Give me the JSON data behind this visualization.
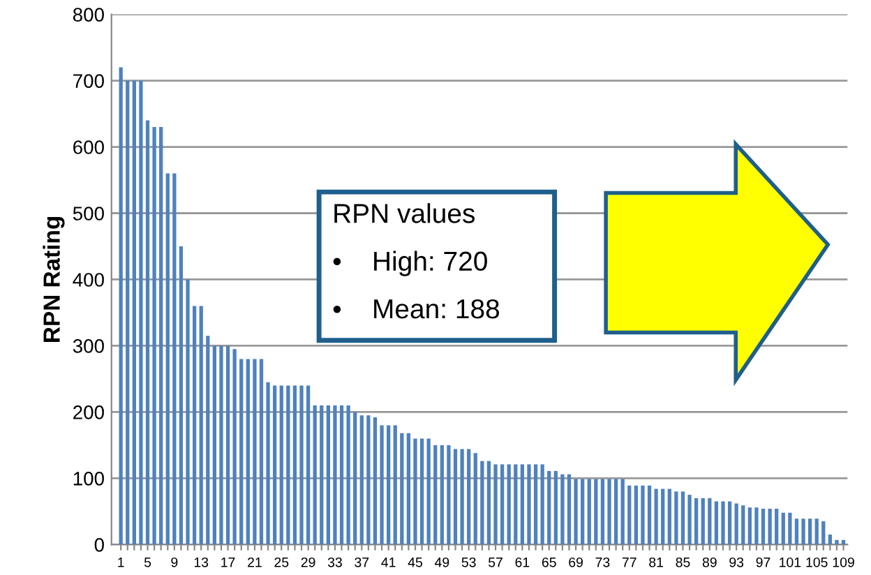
{
  "chart_data": {
    "type": "bar",
    "ylabel": "RPN Rating",
    "categories": [
      "1",
      null,
      null,
      null,
      "5",
      null,
      null,
      null,
      "9",
      null,
      null,
      null,
      "13",
      null,
      null,
      null,
      "17",
      null,
      null,
      null,
      "21",
      null,
      null,
      null,
      "25",
      null,
      null,
      null,
      "29",
      null,
      null,
      null,
      "33",
      null,
      null,
      null,
      "37",
      null,
      null,
      null,
      "41",
      null,
      null,
      null,
      "45",
      null,
      null,
      null,
      "49",
      null,
      null,
      null,
      "53",
      null,
      null,
      null,
      "57",
      null,
      null,
      null,
      "61",
      null,
      null,
      null,
      "65",
      null,
      null,
      null,
      "69",
      null,
      null,
      null,
      "73",
      null,
      null,
      null,
      "77",
      null,
      null,
      null,
      "81",
      null,
      null,
      null,
      "85",
      null,
      null,
      null,
      "89",
      null,
      null,
      null,
      "93",
      null,
      null,
      null,
      "97",
      null,
      null,
      null,
      "101",
      null,
      null,
      null,
      "105",
      null,
      null,
      null,
      "109"
    ],
    "values": [
      720,
      700,
      700,
      700,
      640,
      630,
      630,
      560,
      560,
      450,
      400,
      360,
      360,
      315,
      300,
      300,
      300,
      295,
      280,
      280,
      280,
      280,
      245,
      240,
      240,
      240,
      240,
      240,
      240,
      210,
      210,
      210,
      210,
      210,
      210,
      200,
      195,
      195,
      192,
      180,
      180,
      180,
      168,
      168,
      160,
      160,
      160,
      150,
      150,
      150,
      144,
      144,
      144,
      138,
      126,
      126,
      121,
      121,
      121,
      121,
      121,
      121,
      121,
      121,
      111,
      111,
      106,
      106,
      99,
      99,
      99,
      99,
      99,
      99,
      99,
      99,
      89,
      89,
      89,
      89,
      84,
      84,
      84,
      80,
      80,
      75,
      70,
      70,
      70,
      65,
      65,
      65,
      62,
      59,
      56,
      56,
      54,
      54,
      54,
      48,
      48,
      39,
      39,
      39,
      39,
      35,
      15,
      7,
      7
    ],
    "color": "#4f81bd",
    "ylim": [
      0,
      800
    ],
    "yticks": [
      0,
      100,
      200,
      300,
      400,
      500,
      600,
      700,
      800
    ],
    "grid": "y",
    "annotations": [
      "RPN values",
      "•    High: 720",
      "•    Mean: 188"
    ]
  }
}
